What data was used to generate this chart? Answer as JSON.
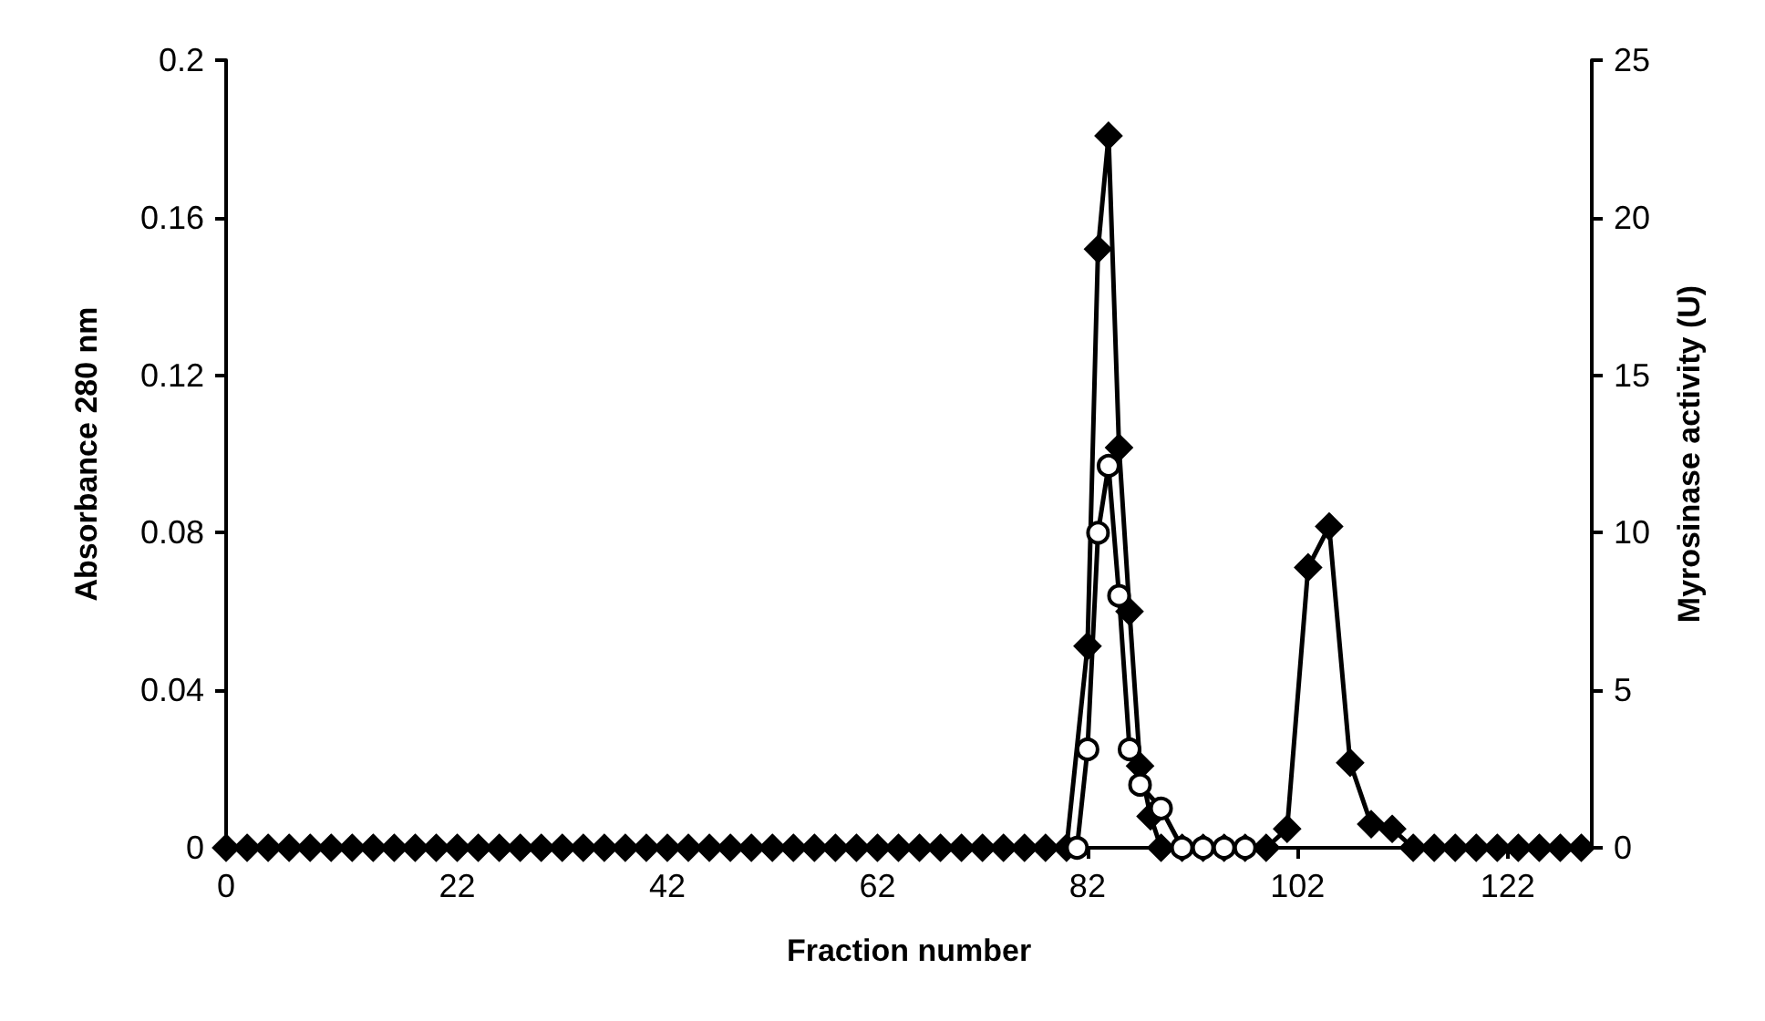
{
  "chart_data": {
    "type": "line",
    "xlabel": "Fraction number",
    "ylabel": "Absorbance 280 nm",
    "y2label": "Myrosinase activity (U)",
    "xlim": [
      0,
      130
    ],
    "xticks": [
      0,
      22,
      42,
      62,
      82,
      102,
      122
    ],
    "ylim": [
      0,
      0.2
    ],
    "yticks": [
      0,
      0.04,
      0.08,
      0.12,
      0.16,
      0.2
    ],
    "y2lim": [
      0,
      25
    ],
    "y2ticks": [
      0,
      5,
      10,
      15,
      20,
      25
    ],
    "grid": false,
    "series": [
      {
        "color": "#000000",
        "marker": "circle",
        "x": [
          81,
          82,
          83,
          84,
          85,
          86,
          87,
          89,
          91,
          93,
          95,
          97
        ],
        "values": [
          0,
          0.025,
          0.08,
          0.097,
          0.064,
          0.025,
          0.016,
          0.01,
          0,
          0,
          0,
          0
        ]
      },
      {
        "color": "#000000",
        "marker": "diamond",
        "axis": "y2",
        "x": [
          0,
          2,
          4,
          6,
          8,
          10,
          12,
          14,
          16,
          18,
          20,
          22,
          24,
          26,
          28,
          30,
          32,
          34,
          36,
          38,
          40,
          42,
          44,
          46,
          48,
          50,
          52,
          54,
          56,
          58,
          60,
          62,
          64,
          66,
          68,
          70,
          72,
          74,
          76,
          78,
          80,
          82,
          83,
          84,
          85,
          86,
          87,
          88,
          89,
          91,
          93,
          95,
          97,
          99,
          101,
          103,
          105,
          107,
          109,
          111,
          113,
          115,
          117,
          119,
          121,
          123,
          125,
          127,
          129
        ],
        "values": [
          0,
          0,
          0,
          0,
          0,
          0,
          0,
          0,
          0,
          0,
          0,
          0,
          0,
          0,
          0,
          0,
          0,
          0,
          0,
          0,
          0,
          0,
          0,
          0,
          0,
          0,
          0,
          0,
          0,
          0,
          0,
          0,
          0,
          0,
          0,
          0,
          0,
          0,
          0,
          0,
          0,
          6.4,
          19,
          22.6,
          12.7,
          7.5,
          2.6,
          1,
          0,
          0,
          0,
          0,
          0,
          0,
          0.6,
          8.9,
          10.2,
          2.7,
          0.75,
          0.6,
          0,
          0,
          0,
          0,
          0,
          0,
          0,
          0,
          0
        ]
      }
    ]
  }
}
